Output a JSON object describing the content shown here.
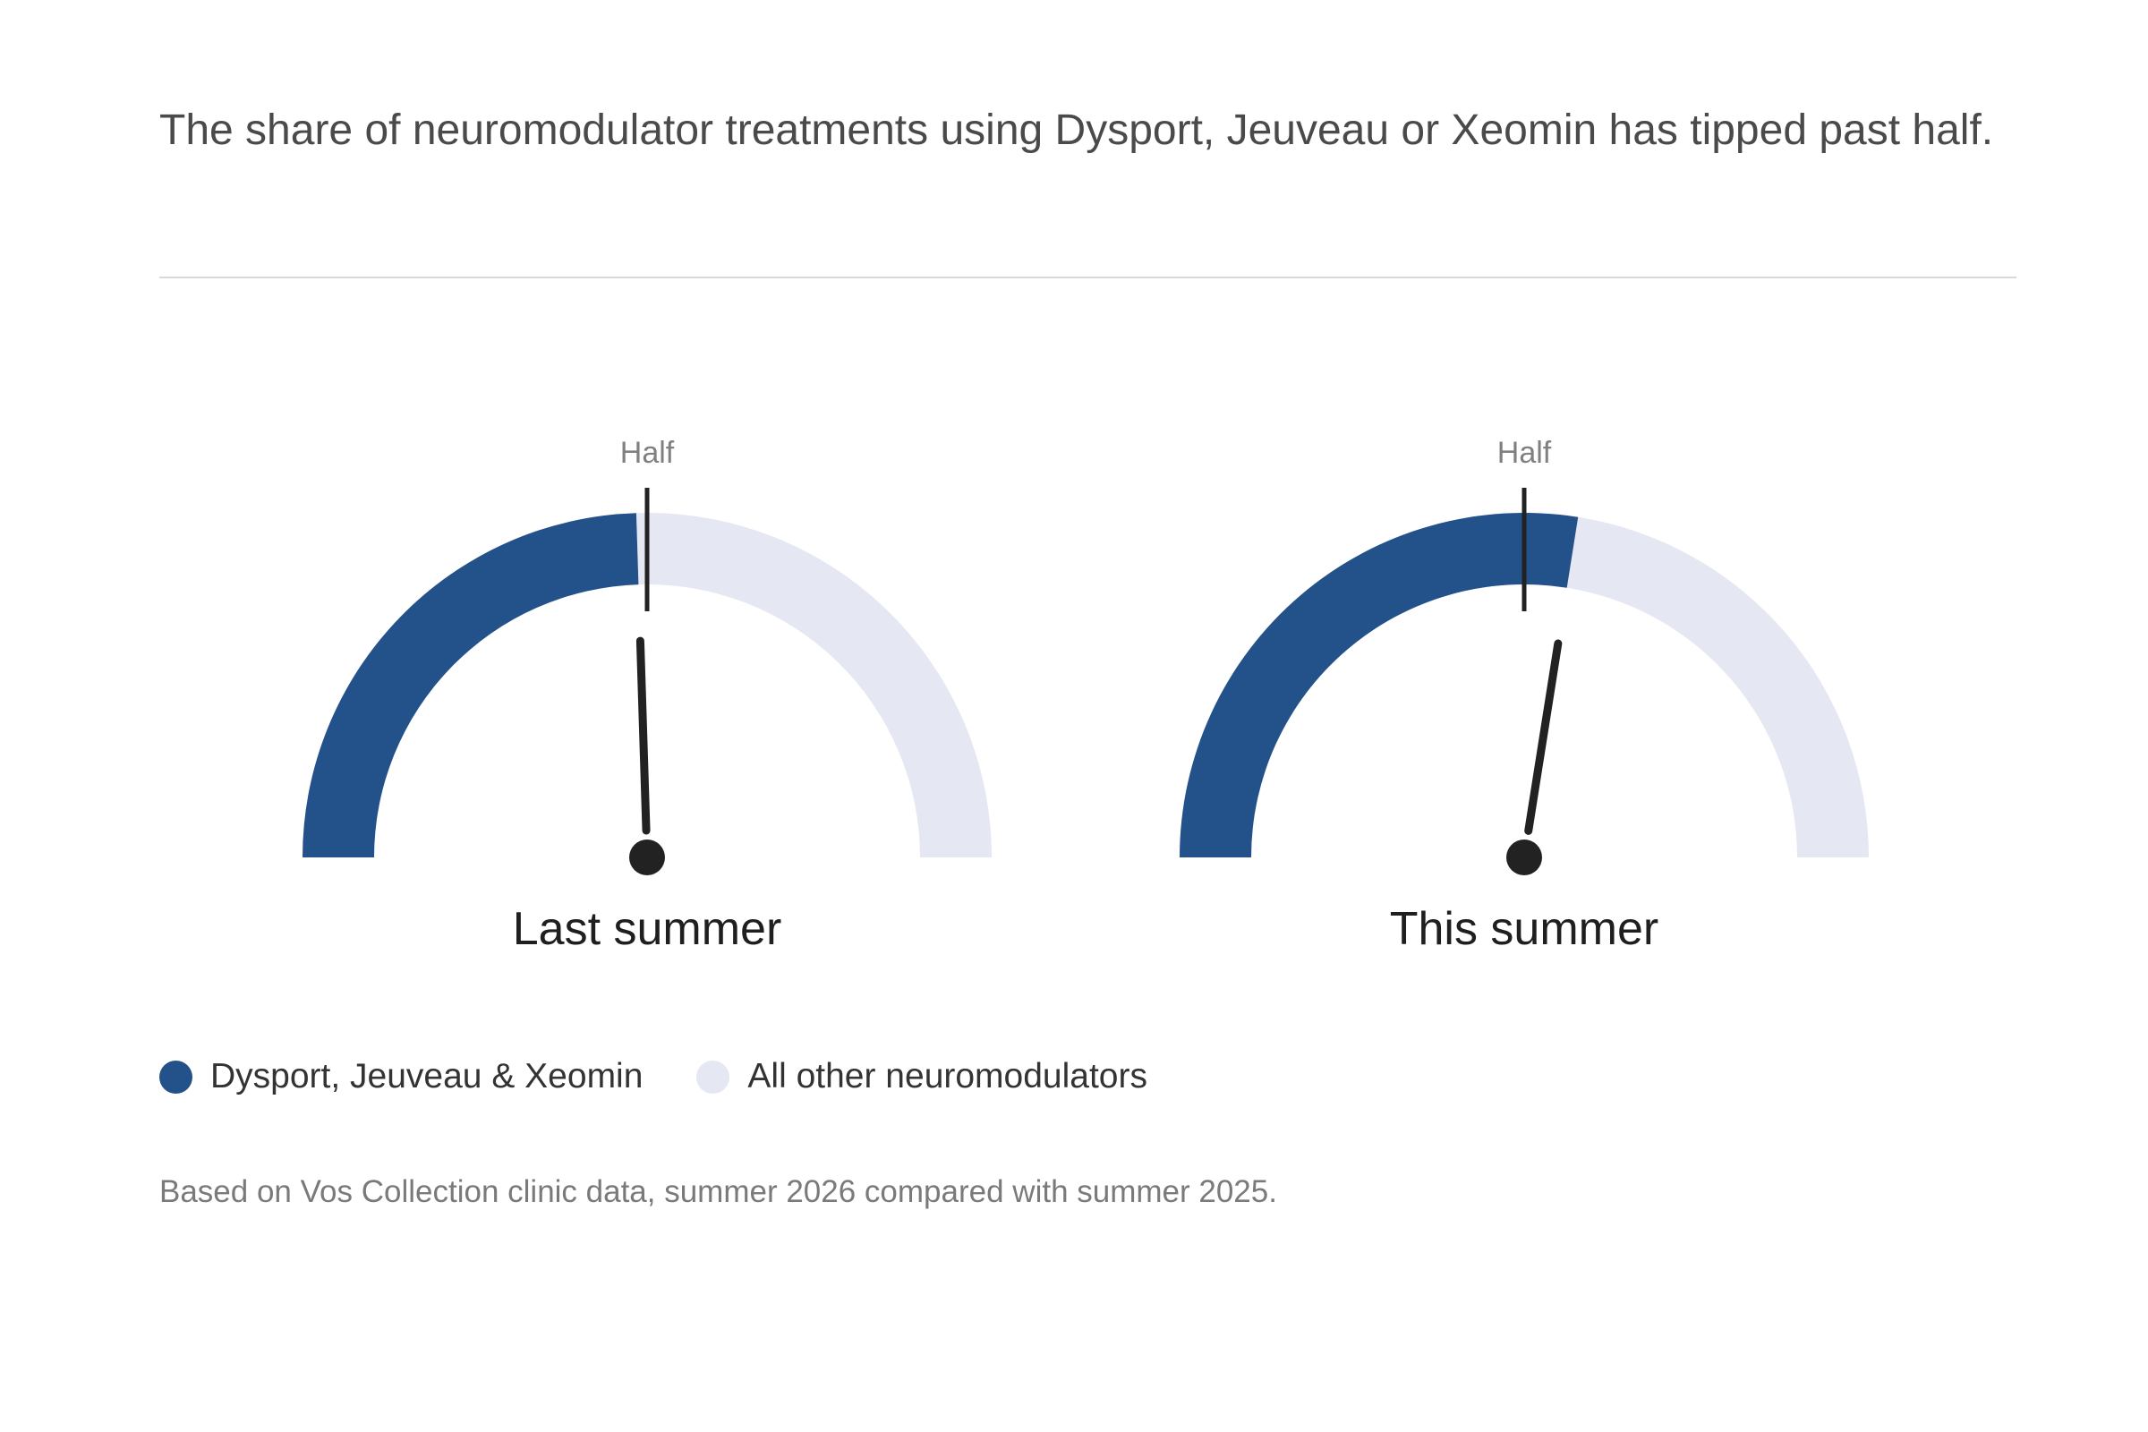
{
  "headline": "The share of neuromodulator treatments using Dysport, Jeuveau or Xeomin has tipped past half.",
  "colors": {
    "brand_share": "#23518a",
    "other_share": "#e5e7f3",
    "needle": "#222222",
    "half_label": "#808080"
  },
  "chart_data": [
    {
      "type": "gauge",
      "title": "Last summer",
      "value": 49,
      "max": 100,
      "marker": {
        "label": "Half",
        "value": 50
      },
      "series": [
        {
          "name": "Dysport, Jeuveau & Xeomin",
          "value": 49
        },
        {
          "name": "All other neuromodulators",
          "value": 51
        }
      ]
    },
    {
      "type": "gauge",
      "title": "This summer",
      "value": 55,
      "max": 100,
      "marker": {
        "label": "Half",
        "value": 50
      },
      "series": [
        {
          "name": "Dysport, Jeuveau & Xeomin",
          "value": 55
        },
        {
          "name": "All other neuromodulators",
          "value": 45
        }
      ]
    }
  ],
  "legend": [
    {
      "label": "Dysport, Jeuveau & Xeomin",
      "color": "#23518a"
    },
    {
      "label": "All other neuromodulators",
      "color": "#e5e7f3"
    }
  ],
  "footnote": "Based on Vos Collection clinic data, summer 2026 compared with summer 2025."
}
